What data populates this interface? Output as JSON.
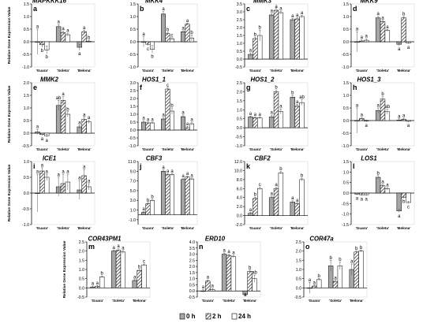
{
  "legend": {
    "entries": [
      {
        "label": "0 h",
        "fill": "#a6a6a6",
        "pattern": "solid"
      },
      {
        "label": "2 h",
        "fill": "#ffffff",
        "pattern": "hatch"
      },
      {
        "label": "24 h",
        "fill": "#ffffff",
        "pattern": "plain"
      }
    ]
  },
  "colors": {
    "bar_gray": "#a6a6a6",
    "hatch": "#333333",
    "axis": "#000000",
    "error": "#555555"
  },
  "chart_data": [
    {
      "type": "bar",
      "letter": "a",
      "gene": "MAPKKK16",
      "ylabel": "Relative Gene Expression Value",
      "ylim": [
        -1,
        1.5
      ],
      "ticks": [
        "1.5",
        "1.0",
        "0.5",
        "0.0",
        "-0.5",
        "-1.0"
      ],
      "categories": [
        "'Guara'",
        "'Soleta'",
        "'Belona'"
      ],
      "series": [
        {
          "name": "0 h",
          "values": [
            0,
            0.6,
            -0.22
          ]
        },
        {
          "name": "2 h",
          "values": [
            -0.12,
            0.36,
            0.4
          ]
        },
        {
          "name": "24 h",
          "values": [
            -0.32,
            0.28,
            0.02
          ]
        }
      ],
      "errors": [
        [
          0.5,
          0.08,
          0.12
        ],
        [
          0.1,
          0.06,
          0.06
        ],
        [
          0.15,
          0.06,
          0.04
        ]
      ],
      "sig": [
        [
          "a",
          "a",
          "a"
        ],
        [
          "b",
          "a",
          "a"
        ],
        [
          "b",
          "a",
          "b"
        ]
      ]
    },
    {
      "type": "bar",
      "letter": "b",
      "gene": "MKK4",
      "ylabel": "",
      "ylim": [
        -1,
        1.5
      ],
      "ticks": [
        "1.5",
        "1.0",
        "0.5",
        "0.0",
        "-0.5",
        "-1.0"
      ],
      "categories": [
        "'Guara'",
        "'Soleta'",
        "'Belona'"
      ],
      "series": [
        {
          "name": "0 h",
          "values": [
            0,
            1.1,
            0.4
          ]
        },
        {
          "name": "2 h",
          "values": [
            -0.1,
            0.32,
            0.7
          ]
        },
        {
          "name": "24 h",
          "values": [
            -0.3,
            0.12,
            0.15
          ]
        }
      ],
      "errors": [
        [
          0.2,
          0.1,
          0.04
        ],
        [
          0.05,
          0.05,
          0.04
        ],
        [
          0.15,
          0.04,
          0.12
        ]
      ],
      "sig": [
        [
          "a",
          "a",
          "a"
        ],
        [
          "c",
          "b",
          "a"
        ],
        [
          "b",
          "c",
          "b"
        ]
      ]
    },
    {
      "type": "bar",
      "letter": "c",
      "gene": "MMK3",
      "ylabel": "",
      "ylim": [
        -0.5,
        3.5
      ],
      "ticks": [
        "3.5",
        "3.0",
        "2.5",
        "2.0",
        "1.5",
        "1.0",
        "0.5",
        "0.0",
        "-0.5"
      ],
      "categories": [
        "'Guara'",
        "'Soleta'",
        "'Belona'"
      ],
      "series": [
        {
          "name": "0 h",
          "values": [
            0.3,
            2.8,
            2.5
          ]
        },
        {
          "name": "2 h",
          "values": [
            1.3,
            3.1,
            2.55
          ]
        },
        {
          "name": "24 h",
          "values": [
            1.5,
            2.95,
            2.7
          ]
        }
      ],
      "errors": [
        [
          0.1,
          0.1,
          0.08
        ],
        [
          0.1,
          0.15,
          0.08
        ],
        [
          0.35,
          0.1,
          0.08
        ]
      ],
      "sig": [
        [
          "a",
          "a",
          "a"
        ],
        [
          "b",
          "a",
          "a"
        ],
        [
          "b",
          "a",
          "a"
        ]
      ]
    },
    {
      "type": "bar",
      "letter": "d",
      "gene": "MKK9",
      "ylabel": "",
      "ylim": [
        -1,
        1.5
      ],
      "ticks": [
        "1.5",
        "1.0",
        "0.5",
        "0.0",
        "-0.5",
        "-1.0"
      ],
      "categories": [
        "'Guara'",
        "'Soleta'",
        "'Belona'"
      ],
      "series": [
        {
          "name": "0 h",
          "values": [
            0,
            0.95,
            -0.1
          ]
        },
        {
          "name": "2 h",
          "values": [
            0.03,
            0.8,
            0.95
          ]
        },
        {
          "name": "24 h",
          "values": [
            0.06,
            0.45,
            -0.05
          ]
        }
      ],
      "errors": [
        [
          0.4,
          0.06,
          0.06
        ],
        [
          0.05,
          0.05,
          0.05
        ],
        [
          0.06,
          0.04,
          0.04
        ]
      ],
      "sig": [
        [
          "a",
          "a",
          "a"
        ],
        [
          "a",
          "a",
          "b"
        ],
        [
          "a",
          "a",
          "a"
        ]
      ]
    },
    {
      "type": "bar",
      "letter": "e",
      "gene": "MMK2",
      "ylabel": "Relative Gene Expression Value",
      "ylim": [
        -0.5,
        2.0
      ],
      "ticks": [
        "2.0",
        "1.5",
        "1.0",
        "0.5",
        "0.0",
        "-0.5"
      ],
      "categories": [
        "'Guara'",
        "'Soleta'",
        "'Belona'"
      ],
      "series": [
        {
          "name": "0 h",
          "values": [
            0.05,
            1.1,
            0.25
          ]
        },
        {
          "name": "2 h",
          "values": [
            -0.05,
            1.3,
            0.55
          ]
        },
        {
          "name": "24 h",
          "values": [
            -0.1,
            0.75,
            0.45
          ]
        }
      ],
      "errors": [
        [
          0.1,
          0.2,
          0.06
        ],
        [
          0.05,
          0.15,
          0.08
        ],
        [
          0.06,
          0.1,
          0.06
        ]
      ],
      "sig": [
        [
          "a",
          "ab",
          "a"
        ],
        [
          "a",
          "a",
          "a"
        ],
        [
          "a",
          "b",
          "a"
        ]
      ]
    },
    {
      "type": "bar",
      "letter": "f",
      "gene": "HOS1_1",
      "ylabel": "",
      "ylim": [
        -1,
        3.0
      ],
      "ticks": [
        "3.0",
        "2.5",
        "2.0",
        "1.5",
        "1.0",
        "0.5",
        "0.0",
        "-0.5",
        "-1.0"
      ],
      "categories": [
        "'Guara'",
        "'Soleta'",
        "'Belona'"
      ],
      "series": [
        {
          "name": "0 h",
          "values": [
            0.5,
            0.7,
            0.85
          ]
        },
        {
          "name": "2 h",
          "values": [
            0.45,
            2.6,
            0.15
          ]
        },
        {
          "name": "24 h",
          "values": [
            0.45,
            1.2,
            0.4
          ]
        }
      ],
      "errors": [
        [
          0.1,
          0.1,
          0.1
        ],
        [
          0.05,
          0.1,
          0.08
        ],
        [
          0.05,
          0.2,
          0.1
        ]
      ],
      "sig": [
        [
          "a",
          "a",
          "a"
        ],
        [
          "a",
          "c",
          "a"
        ],
        [
          "a",
          "b",
          "a"
        ]
      ]
    },
    {
      "type": "bar",
      "letter": "g",
      "gene": "HOS1_2",
      "ylabel": "",
      "ylim": [
        -1,
        2.5
      ],
      "ticks": [
        "2.5",
        "2.0",
        "1.5",
        "1.0",
        "0.5",
        "0.0",
        "-0.5",
        "-1.0"
      ],
      "categories": [
        "'Guara'",
        "'Soleta'",
        "'Belona'"
      ],
      "series": [
        {
          "name": "0 h",
          "values": [
            0.6,
            0.6,
            1.7
          ]
        },
        {
          "name": "2 h",
          "values": [
            0.55,
            2.0,
            1.2
          ]
        },
        {
          "name": "24 h",
          "values": [
            0.55,
            0.9,
            1.4
          ]
        }
      ],
      "errors": [
        [
          0.05,
          0.1,
          0.1
        ],
        [
          0.05,
          0.1,
          0.1
        ],
        [
          0.05,
          0.15,
          0.15
        ]
      ],
      "sig": [
        [
          "a",
          "a",
          "b"
        ],
        [
          "a",
          "b",
          "a"
        ],
        [
          "a",
          "a",
          "ab"
        ]
      ]
    },
    {
      "type": "bar",
      "letter": "h",
      "gene": "HOS1_3",
      "ylabel": "",
      "ylim": [
        -1,
        1.5
      ],
      "ticks": [
        "1.5",
        "1.0",
        "0.5",
        "0.0",
        "-0.5",
        "-1.0"
      ],
      "categories": [
        "'Guara'",
        "'Soleta'",
        "'Belona'"
      ],
      "series": [
        {
          "name": "0 h",
          "values": [
            0,
            0.4,
            0.02
          ]
        },
        {
          "name": "2 h",
          "values": [
            0.08,
            0.85,
            0.05
          ]
        },
        {
          "name": "24 h",
          "values": [
            -0.02,
            0.35,
            -0.03
          ]
        }
      ],
      "errors": [
        [
          0.5,
          0.1,
          0.05
        ],
        [
          0.04,
          0.1,
          0.04
        ],
        [
          0.04,
          0.1,
          0.04
        ]
      ],
      "sig": [
        [
          "a",
          "a",
          "a"
        ],
        [
          "a",
          "b",
          "a"
        ],
        [
          "a",
          "ab",
          "a"
        ]
      ]
    },
    {
      "type": "bar",
      "letter": "i",
      "gene": "ICE1",
      "ylabel": "Relative Gene Expression Value",
      "ylim": [
        -1,
        1.0
      ],
      "ticks": [
        "1.0",
        "0.5",
        "0.0",
        "-0.5",
        "-1.0"
      ],
      "categories": [
        "'Guara'",
        "'Soleta'",
        "'Belona'"
      ],
      "series": [
        {
          "name": "0 h",
          "values": [
            0,
            0.2,
            0.1
          ]
        },
        {
          "name": "2 h",
          "values": [
            0.7,
            0.3,
            0.55
          ]
        },
        {
          "name": "24 h",
          "values": [
            0.5,
            0.35,
            0.2
          ]
        }
      ],
      "errors": [
        [
          0.6,
          0.3,
          0.3
        ],
        [
          0.1,
          0.3,
          0.2
        ],
        [
          0.1,
          0.25,
          0.1
        ]
      ],
      "sig": [
        [
          "a",
          "a",
          "a"
        ],
        [
          "a",
          "a",
          "a"
        ],
        [
          "a",
          "a",
          "a"
        ]
      ]
    },
    {
      "type": "bar",
      "letter": "j",
      "gene": "CBF3",
      "ylabel": "",
      "ylim": [
        -2,
        11.0
      ],
      "ticks": [
        "11.0",
        "9.0",
        "7.0",
        "5.0",
        "3.0",
        "1.0",
        "-1.0"
      ],
      "categories": [
        "'Guara'",
        "'Soleta'",
        "'Belona'"
      ],
      "series": [
        {
          "name": "0 h",
          "values": [
            0.5,
            9.0,
            7.3
          ]
        },
        {
          "name": "2 h",
          "values": [
            2.3,
            8.3,
            7.8
          ]
        },
        {
          "name": "24 h",
          "values": [
            3.0,
            8.3,
            7.4
          ]
        }
      ],
      "errors": [
        [
          0.2,
          0.3,
          0.2
        ],
        [
          0.2,
          0.2,
          0.2
        ],
        [
          0.2,
          0.2,
          0.2
        ]
      ],
      "sig": [
        [
          "a",
          "a",
          "a"
        ],
        [
          "b",
          "a",
          "a"
        ],
        [
          "b",
          "a",
          "a"
        ]
      ]
    },
    {
      "type": "bar",
      "letter": "k",
      "gene": "CBF2",
      "ylabel": "",
      "ylim": [
        -2,
        12.0
      ],
      "ticks": [
        "12.0",
        "10.0",
        "8.0",
        "6.0",
        "4.0",
        "2.0",
        "0.0",
        "-2.0"
      ],
      "categories": [
        "'Guara'",
        "'Soleta'",
        "'Belona'"
      ],
      "series": [
        {
          "name": "0 h",
          "values": [
            0.5,
            4.0,
            3.0
          ]
        },
        {
          "name": "2 h",
          "values": [
            3.8,
            6.0,
            2.6
          ]
        },
        {
          "name": "24 h",
          "values": [
            6.0,
            9.5,
            8.0
          ]
        }
      ],
      "errors": [
        [
          0.2,
          0.3,
          0.3
        ],
        [
          0.3,
          0.3,
          0.2
        ],
        [
          0.3,
          0.3,
          0.3
        ]
      ],
      "sig": [
        [
          "a",
          "a",
          "a"
        ],
        [
          "b",
          "a",
          "a"
        ],
        [
          "c",
          "b",
          "b"
        ]
      ]
    },
    {
      "type": "bar",
      "letter": "l",
      "gene": "LOS1",
      "ylabel": "",
      "ylim": [
        -1.5,
        1.5
      ],
      "ticks": [
        "1.5",
        "1.0",
        "0.5",
        "0.0",
        "-0.5",
        "-1.0",
        "-1.5"
      ],
      "categories": [
        "'Guara'",
        "'Soleta'",
        "'Belona'"
      ],
      "series": [
        {
          "name": "0 h",
          "values": [
            -0.05,
            0.75,
            -0.85
          ]
        },
        {
          "name": "2 h",
          "values": [
            -0.08,
            0.35,
            -0.2
          ]
        },
        {
          "name": "24 h",
          "values": [
            -0.08,
            0.2,
            -0.45
          ]
        }
      ],
      "errors": [
        [
          0.05,
          0.08,
          0.08
        ],
        [
          0.05,
          0.06,
          0.05
        ],
        [
          0.05,
          0.06,
          0.05
        ]
      ],
      "sig": [
        [
          "a",
          "b",
          "a"
        ],
        [
          "a",
          "a",
          "b"
        ],
        [
          "a",
          "a",
          "c"
        ]
      ]
    },
    {
      "type": "bar",
      "letter": "m",
      "gene": "COR43PM1",
      "ylabel": "Relative Gene Expression Value",
      "ylim": [
        -0.5,
        2.5
      ],
      "ticks": [
        "2.5",
        "2.0",
        "1.5",
        "1.0",
        "0.5",
        "0.0",
        "-0.5"
      ],
      "categories": [
        "'Guara'",
        "'Soleta'",
        "'Belona'"
      ],
      "series": [
        {
          "name": "0 h",
          "values": [
            0.05,
            2.0,
            0.4
          ]
        },
        {
          "name": "2 h",
          "values": [
            0.08,
            2.05,
            0.95
          ]
        },
        {
          "name": "24 h",
          "values": [
            0.6,
            1.95,
            1.25
          ]
        }
      ],
      "errors": [
        [
          0.05,
          0.06,
          0.05
        ],
        [
          0.05,
          0.08,
          0.05
        ],
        [
          0.05,
          0.08,
          0.05
        ]
      ],
      "sig": [
        [
          "a",
          "a",
          "a"
        ],
        [
          "a",
          "a",
          "b"
        ],
        [
          "b",
          "a",
          "c"
        ]
      ]
    },
    {
      "type": "bar",
      "letter": "n",
      "gene": "ERD10",
      "ylabel": "",
      "ylim": [
        -0.5,
        4.0
      ],
      "ticks": [
        "4.0",
        "3.5",
        "3.0",
        "2.5",
        "2.0",
        "1.5",
        "1.0",
        "0.5",
        "0.0",
        "-0.5"
      ],
      "categories": [
        "'Guara'",
        "'Soleta'",
        "'Belona'"
      ],
      "series": [
        {
          "name": "0 h",
          "values": [
            0,
            3.0,
            -0.3
          ]
        },
        {
          "name": "2 h",
          "values": [
            0.8,
            2.9,
            1.6
          ]
        },
        {
          "name": "24 h",
          "values": [
            0.1,
            2.8,
            1.0
          ]
        }
      ],
      "errors": [
        [
          0.1,
          0.1,
          0.1
        ],
        [
          0.1,
          0.1,
          0.1
        ],
        [
          0.1,
          0.1,
          0.3
        ]
      ],
      "sig": [
        [
          "a",
          "a",
          "a"
        ],
        [
          "a",
          "a",
          "b"
        ],
        [
          "a",
          "a",
          "ab"
        ]
      ]
    },
    {
      "type": "bar",
      "letter": "o",
      "gene": "COR47a",
      "ylabel": "",
      "ylim": [
        -0.5,
        2.5
      ],
      "ticks": [
        "2.5",
        "2.0",
        "1.5",
        "1.0",
        "0.5",
        "0.0",
        "-0.5"
      ],
      "categories": [
        "'Guara'",
        "'Soleta'",
        "'Belona'"
      ],
      "series": [
        {
          "name": "0 h",
          "values": [
            0,
            1.2,
            1.0
          ]
        },
        {
          "name": "2 h",
          "values": [
            0.1,
            0.35,
            1.95
          ]
        },
        {
          "name": "24 h",
          "values": [
            0.45,
            1.2,
            2.0
          ]
        }
      ],
      "errors": [
        [
          0.3,
          0.3,
          0.3
        ],
        [
          0.05,
          0.06,
          0.05
        ],
        [
          0.06,
          0.2,
          0.06
        ]
      ],
      "sig": [
        [
          "a",
          "b",
          "a"
        ],
        [
          "a",
          "a",
          "b"
        ],
        [
          "b",
          "b",
          "b"
        ]
      ]
    }
  ]
}
